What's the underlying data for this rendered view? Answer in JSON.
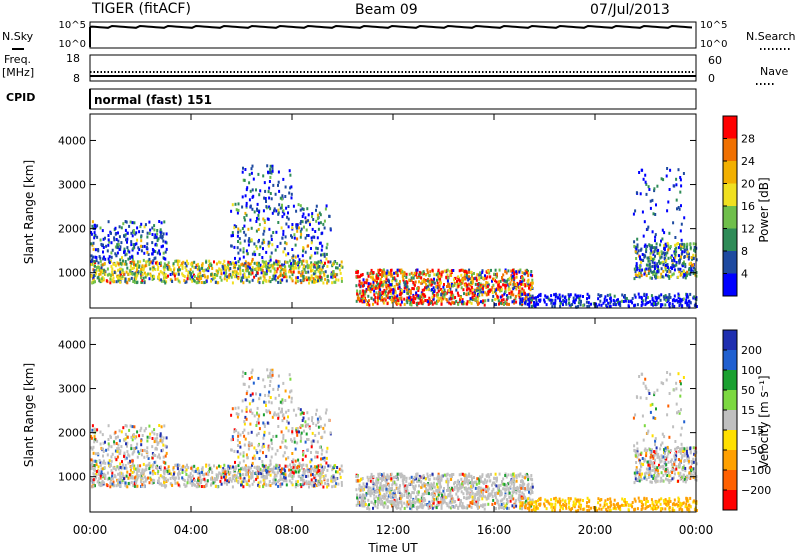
{
  "header": {
    "title": "TIGER (fitACF)",
    "beam": "Beam 09",
    "date": "07/Jul/2013"
  },
  "left_labels": {
    "nsky": "N.Sky",
    "freq": "Freq.",
    "mhz": "[MHz]",
    "cpid": "CPID"
  },
  "right_labels": {
    "nsearch": "N.Search",
    "nave": "Nave"
  },
  "cpid_text": "normal (fast) 151",
  "colors": {
    "power_scale": [
      "#0000ff",
      "#1e4aa0",
      "#2e8b57",
      "#6fbf4b",
      "#f0e020",
      "#f2b000",
      "#f07000",
      "#ff0000"
    ],
    "velocity_scale": [
      "#1f2fb0",
      "#2060d0",
      "#1aa030",
      "#7cd840",
      "#c0c0c0",
      "#ffe000",
      "#ffa000",
      "#ff6000",
      "#ff0000"
    ]
  },
  "chart_data": [
    {
      "type": "line",
      "panel": "noise",
      "ylabels_left": [
        "10^5",
        "10^0"
      ],
      "ylabels_right": [
        "10^5",
        "10^0"
      ]
    },
    {
      "type": "line",
      "panel": "frequency",
      "ylabels_left": [
        "18",
        "8"
      ],
      "ylabels_right": [
        "60",
        "0"
      ]
    },
    {
      "type": "heatmap",
      "panel": "power",
      "ylabel": "Slant Range [km]",
      "ylim": [
        200,
        4600
      ],
      "yticks": [
        "1000",
        "2000",
        "3000",
        "4000"
      ],
      "xlim": [
        0,
        24
      ],
      "colorbar": {
        "label": "Power [dB]",
        "ticks": [
          "4",
          "8",
          "12",
          "16",
          "20",
          "24",
          "28"
        ]
      }
    },
    {
      "type": "heatmap",
      "panel": "velocity",
      "ylabel": "Slant Range [km]",
      "ylim": [
        200,
        4600
      ],
      "yticks": [
        "1000",
        "2000",
        "3000",
        "4000"
      ],
      "xlim": [
        0,
        24
      ],
      "xlabel": "Time UT",
      "xticks": [
        "00:00",
        "04:00",
        "08:00",
        "12:00",
        "16:00",
        "20:00",
        "00:00"
      ],
      "colorbar": {
        "label": "Velocity [m s⁻¹]",
        "ticks": [
          "200",
          "100",
          "50",
          "15",
          "−15",
          "−50",
          "−100",
          "−200"
        ]
      }
    }
  ]
}
